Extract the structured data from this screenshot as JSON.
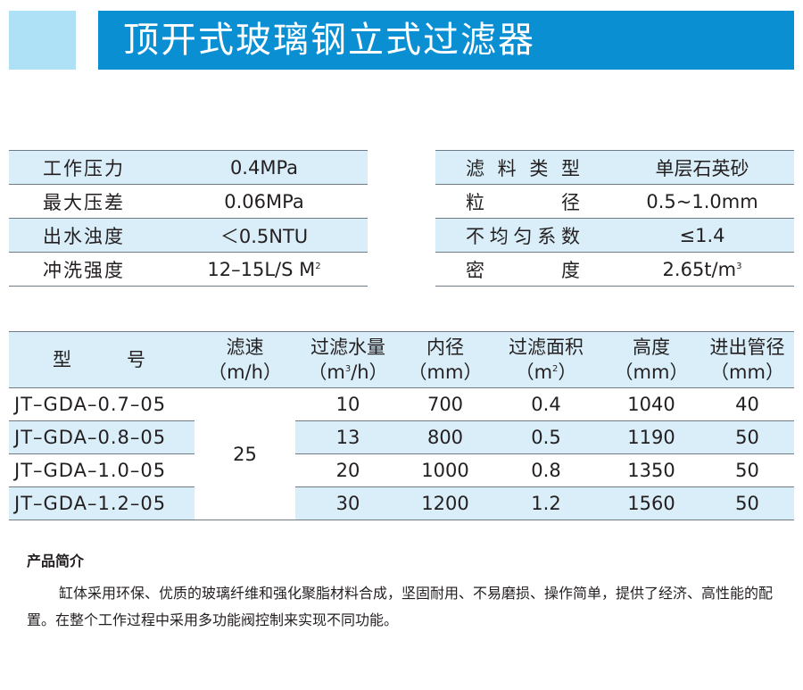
{
  "header": {
    "title": "顶开式玻璃钢立式过滤器"
  },
  "spec_left": [
    {
      "label": "工作压力",
      "value": "0.4MPa"
    },
    {
      "label": "最大压差",
      "value": "0.06MPa"
    },
    {
      "label": "出水浊度",
      "value": "＜0.5NTU"
    },
    {
      "label": "冲洗强度",
      "value": "12–15L/S M",
      "sup": "2"
    }
  ],
  "spec_right": [
    {
      "label": "滤料类型",
      "value": "单层石英砂"
    },
    {
      "label": "粒径",
      "value": "0.5~1.0mm"
    },
    {
      "label": "不均匀系数",
      "value": "≤1.4"
    },
    {
      "label": "密度",
      "value": "2.65t/m",
      "sup": "3"
    }
  ],
  "models_table": {
    "headers": [
      {
        "line1": "型号",
        "line2": ""
      },
      {
        "line1": "滤速",
        "line2": "（m/h）"
      },
      {
        "line1": "过滤水量",
        "line2_pre": "（m",
        "line2_sup": "3",
        "line2_post": "/h）"
      },
      {
        "line1": "内径",
        "line2": "（mm）"
      },
      {
        "line1": "过滤面积",
        "line2_pre": "（m",
        "line2_sup": "2",
        "line2_post": "）"
      },
      {
        "line1": "高度",
        "line2": "（mm）"
      },
      {
        "line1": "进出管径",
        "line2": "（mm）"
      }
    ],
    "speed": "25",
    "rows": [
      {
        "model": "JT–GDA–0.7–05",
        "flow": "10",
        "diameter": "700",
        "area": "0.4",
        "height": "1040",
        "pipe": "40"
      },
      {
        "model": "JT–GDA–0.8–05",
        "flow": "13",
        "diameter": "800",
        "area": "0.5",
        "height": "1190",
        "pipe": "50"
      },
      {
        "model": "JT–GDA–1.0–05",
        "flow": "20",
        "diameter": "1000",
        "area": "0.8",
        "height": "1350",
        "pipe": "50"
      },
      {
        "model": "JT–GDA–1.2–05",
        "flow": "30",
        "diameter": "1200",
        "area": "1.2",
        "height": "1560",
        "pipe": "50"
      }
    ]
  },
  "intro": {
    "title": "产品简介",
    "text": "缸体采用环保、优质的玻璃纤维和强化聚脂材料合成，坚固耐用、不易磨损、操作简单，提供了经济、高性能的配置。在整个工作过程中采用多功能阀控制来实现不同功能。"
  },
  "colors": {
    "header_blue": "#0b8fd3",
    "header_light": "#aee0f6",
    "row_shade": "#d9eef9"
  }
}
